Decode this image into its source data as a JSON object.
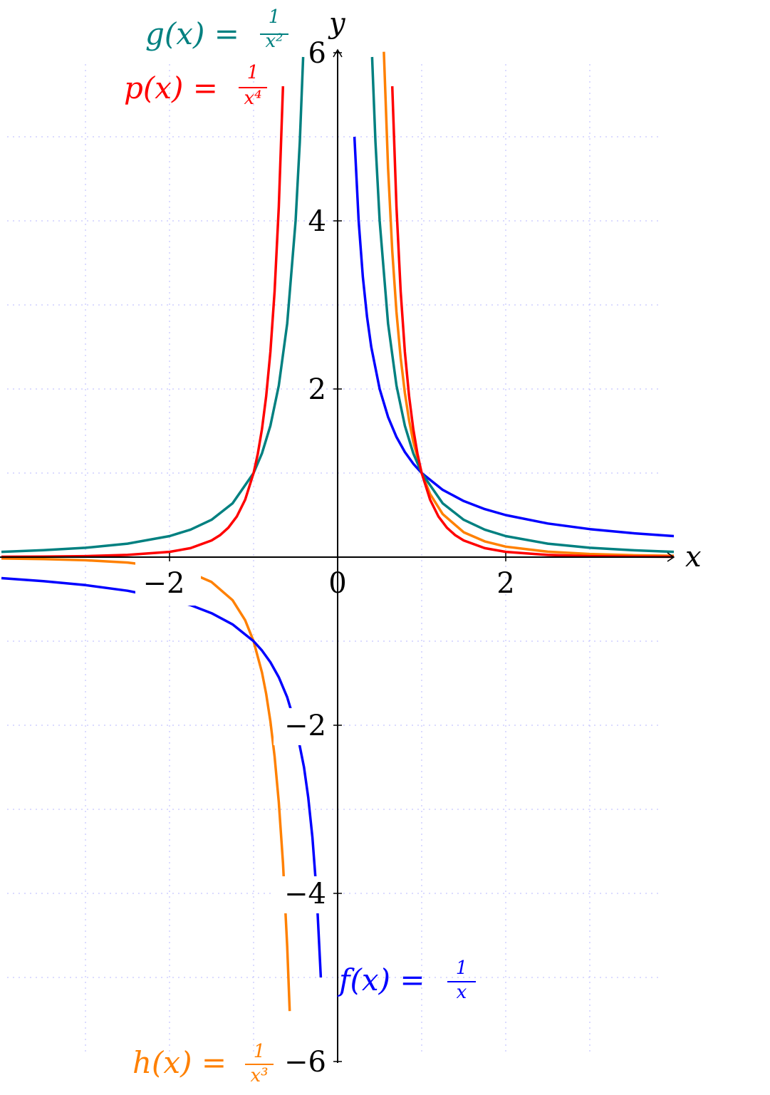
{
  "chart_data": {
    "type": "line",
    "title": "",
    "xlabel": "x",
    "ylabel": "y",
    "xlim": [
      -4,
      4
    ],
    "ylim": [
      -6,
      6
    ],
    "grid": true,
    "x_ticks": [
      -2,
      0,
      2
    ],
    "y_ticks": [
      -6,
      -4,
      -2,
      2,
      4,
      6
    ],
    "x_tick_labels": [
      "−2",
      "0",
      "2"
    ],
    "y_tick_labels": [
      "−6",
      "−4",
      "−2",
      "2",
      "4",
      "6"
    ],
    "series": [
      {
        "name": "f(x) = 1/x",
        "label_main": "f(x) = ",
        "label_num": "1",
        "label_den": "x",
        "color": "#0000ff",
        "segments": [
          {
            "x": [
              -4.0,
              -3.5,
              -3.0,
              -2.5,
              -2.0,
              -1.75,
              -1.5,
              -1.25,
              -1.0,
              -0.9,
              -0.8,
              -0.7,
              -0.6,
              -0.5,
              -0.4,
              -0.35,
              -0.3,
              -0.25,
              -0.2
            ],
            "y": [
              -0.25,
              -0.286,
              -0.333,
              -0.4,
              -0.5,
              -0.571,
              -0.667,
              -0.8,
              -1.0,
              -1.111,
              -1.25,
              -1.429,
              -1.667,
              -2.0,
              -2.5,
              -2.857,
              -3.333,
              -4.0,
              -5.0
            ]
          },
          {
            "x": [
              0.2,
              0.25,
              0.3,
              0.35,
              0.4,
              0.5,
              0.6,
              0.7,
              0.8,
              0.9,
              1.0,
              1.25,
              1.5,
              1.75,
              2.0,
              2.5,
              3.0,
              3.5,
              4.0
            ],
            "y": [
              5.0,
              4.0,
              3.333,
              2.857,
              2.5,
              2.0,
              1.667,
              1.429,
              1.25,
              1.111,
              1.0,
              0.8,
              0.667,
              0.571,
              0.5,
              0.4,
              0.333,
              0.286,
              0.25
            ]
          }
        ]
      },
      {
        "name": "g(x) = 1/x²",
        "label_main": "g(x) = ",
        "label_num": "1",
        "label_den": "x²",
        "color": "#008080",
        "segments": [
          {
            "x": [
              -4.0,
              -3.5,
              -3.0,
              -2.5,
              -2.0,
              -1.75,
              -1.5,
              -1.25,
              -1.0,
              -0.9,
              -0.8,
              -0.7,
              -0.6,
              -0.5,
              -0.45,
              -0.41
            ],
            "y": [
              0.063,
              0.082,
              0.111,
              0.16,
              0.25,
              0.327,
              0.444,
              0.64,
              1.0,
              1.235,
              1.563,
              2.041,
              2.778,
              4.0,
              4.938,
              5.949
            ]
          },
          {
            "x": [
              0.41,
              0.45,
              0.5,
              0.6,
              0.7,
              0.8,
              0.9,
              1.0,
              1.25,
              1.5,
              1.75,
              2.0,
              2.5,
              3.0,
              3.5,
              4.0
            ],
            "y": [
              5.949,
              4.938,
              4.0,
              2.778,
              2.041,
              1.563,
              1.235,
              1.0,
              0.64,
              0.444,
              0.327,
              0.25,
              0.16,
              0.111,
              0.082,
              0.063
            ]
          }
        ]
      },
      {
        "name": "h(x) = 1/x³",
        "label_main": "h(x) = ",
        "label_num": "1",
        "label_den": "x³",
        "color": "#ff8000",
        "segments": [
          {
            "x": [
              -4.0,
              -3.5,
              -3.0,
              -2.5,
              -2.0,
              -1.75,
              -1.5,
              -1.25,
              -1.1,
              -1.0,
              -0.9,
              -0.85,
              -0.8,
              -0.75,
              -0.7,
              -0.65,
              -0.6,
              -0.57
            ],
            "y": [
              -0.016,
              -0.023,
              -0.037,
              -0.064,
              -0.125,
              -0.187,
              -0.296,
              -0.512,
              -0.751,
              -1.0,
              -1.372,
              -1.628,
              -1.953,
              -2.37,
              -2.915,
              -3.641,
              -4.63,
              -5.4
            ]
          },
          {
            "x": [
              0.55,
              0.6,
              0.65,
              0.7,
              0.75,
              0.8,
              0.85,
              0.9,
              1.0,
              1.1,
              1.25,
              1.5,
              1.75,
              2.0,
              2.5,
              3.0,
              3.5,
              4.0
            ],
            "y": [
              6.011,
              4.63,
              3.641,
              2.915,
              2.37,
              1.953,
              1.628,
              1.372,
              1.0,
              0.751,
              0.512,
              0.296,
              0.187,
              0.125,
              0.064,
              0.037,
              0.023,
              0.016
            ]
          }
        ]
      },
      {
        "name": "p(x) = 1/x⁴",
        "label_main": "p(x) = ",
        "label_num": "1",
        "label_den": "x⁴",
        "color": "#ff0000",
        "segments": [
          {
            "x": [
              -4.0,
              -3.5,
              -3.0,
              -2.5,
              -2.0,
              -1.75,
              -1.5,
              -1.4,
              -1.3,
              -1.2,
              -1.1,
              -1.0,
              -0.95,
              -0.9,
              -0.85,
              -0.8,
              -0.75,
              -0.7,
              -0.65
            ],
            "y": [
              0.004,
              0.007,
              0.012,
              0.026,
              0.063,
              0.107,
              0.198,
              0.26,
              0.35,
              0.482,
              0.683,
              1.0,
              1.228,
              1.524,
              1.915,
              2.441,
              3.16,
              4.165,
              5.601
            ]
          },
          {
            "x": [
              0.65,
              0.7,
              0.75,
              0.8,
              0.85,
              0.9,
              0.95,
              1.0,
              1.1,
              1.2,
              1.3,
              1.4,
              1.5,
              1.75,
              2.0,
              2.5,
              3.0,
              3.5,
              4.0
            ],
            "y": [
              5.601,
              4.165,
              3.16,
              2.441,
              1.915,
              1.524,
              1.228,
              1.0,
              0.683,
              0.482,
              0.35,
              0.26,
              0.198,
              0.107,
              0.063,
              0.026,
              0.012,
              0.007,
              0.004
            ]
          }
        ]
      }
    ]
  }
}
